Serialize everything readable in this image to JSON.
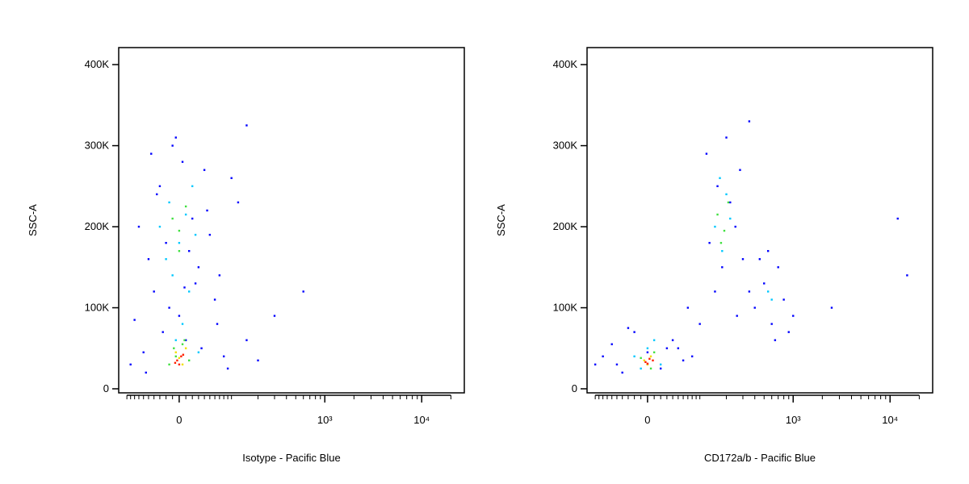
{
  "chart_data": [
    {
      "type": "scatter",
      "xlabel": "Isotype - Pacific Blue",
      "ylabel": "SSC-A",
      "xscale": "biex",
      "xlim": [
        -125,
        27500
      ],
      "ylim": [
        -5000,
        421000
      ],
      "xticks": [
        0,
        {
          "value": 1000,
          "label": "10³"
        },
        {
          "value": 10000,
          "label": "10⁴"
        }
      ],
      "xminorticks": [
        -100,
        -90,
        -80,
        -70,
        -60,
        -50,
        -40,
        -30,
        -20,
        -10,
        10,
        20,
        30,
        40,
        50,
        60,
        70,
        80,
        90,
        100,
        200,
        300,
        400,
        500,
        600,
        700,
        800,
        900,
        2000,
        3000,
        4000,
        5000,
        6000,
        7000,
        8000,
        9000,
        20000
      ],
      "yticks": [
        0,
        {
          "value": 100000,
          "label": "100K"
        },
        {
          "value": 200000,
          "label": "200K"
        },
        {
          "value": 300000,
          "label": "300K"
        },
        {
          "value": 400000,
          "label": "400K"
        }
      ],
      "series": [
        {
          "color": "#0000ff",
          "x": [
            -90,
            -60,
            -40,
            -30,
            -20,
            -10,
            0,
            10,
            20,
            30,
            40,
            60,
            80,
            120,
            -70,
            -50,
            -25,
            5,
            25,
            50,
            90,
            150,
            -35,
            -15,
            15,
            35,
            70,
            -80,
            -45,
            45,
            100,
            200,
            -55,
            65,
            -5,
            8,
            600,
            300,
            150
          ],
          "y": [
            30000,
            45000,
            120000,
            250000,
            180000,
            300000,
            90000,
            60000,
            210000,
            150000,
            270000,
            110000,
            40000,
            230000,
            200000,
            160000,
            70000,
            280000,
            130000,
            190000,
            25000,
            60000,
            240000,
            100000,
            170000,
            50000,
            140000,
            85000,
            290000,
            220000,
            260000,
            35000,
            20000,
            80000,
            310000,
            125000,
            120000,
            90000,
            325000
          ]
        },
        {
          "color": "#00c8ff",
          "x": [
            -30,
            -15,
            0,
            10,
            20,
            -20,
            5,
            15,
            -5,
            25,
            -10,
            30
          ],
          "y": [
            200000,
            230000,
            180000,
            215000,
            250000,
            160000,
            80000,
            120000,
            60000,
            190000,
            140000,
            45000
          ]
        },
        {
          "color": "#40e040",
          "x": [
            -10,
            0,
            10,
            -5,
            5,
            15,
            -15,
            0,
            8,
            -8
          ],
          "y": [
            210000,
            195000,
            225000,
            40000,
            55000,
            35000,
            30000,
            170000,
            60000,
            50000
          ]
        },
        {
          "color": "#f0e000",
          "x": [
            -5,
            5,
            0,
            10
          ],
          "y": [
            45000,
            30000,
            38000,
            50000
          ]
        },
        {
          "color": "#ff2000",
          "x": [
            -3,
            3,
            0,
            6,
            -6
          ],
          "y": [
            35000,
            40000,
            30000,
            42000,
            32000
          ]
        }
      ]
    },
    {
      "type": "scatter",
      "xlabel": "CD172a/b - Pacific Blue",
      "ylabel": "SSC-A",
      "xscale": "biex",
      "xlim": [
        -125,
        27500
      ],
      "ylim": [
        -5000,
        421000
      ],
      "xticks": [
        0,
        {
          "value": 1000,
          "label": "10³"
        },
        {
          "value": 10000,
          "label": "10⁴"
        }
      ],
      "xminorticks": [
        -100,
        -90,
        -80,
        -70,
        -60,
        -50,
        -40,
        -30,
        -20,
        -10,
        10,
        20,
        30,
        40,
        50,
        60,
        70,
        80,
        90,
        100,
        200,
        300,
        400,
        500,
        600,
        700,
        800,
        900,
        2000,
        3000,
        4000,
        5000,
        6000,
        7000,
        8000,
        9000,
        20000
      ],
      "yticks": [
        0,
        {
          "value": 100000,
          "label": "100K"
        },
        {
          "value": 200000,
          "label": "200K"
        },
        {
          "value": 300000,
          "label": "300K"
        },
        {
          "value": 400000,
          "label": "400K"
        }
      ],
      "series": [
        {
          "color": "#0000ff",
          "x": [
            -100,
            -60,
            -40,
            -20,
            0,
            20,
            40,
            60,
            100,
            -80,
            -30,
            30,
            80,
            130,
            160,
            200,
            250,
            300,
            120,
            180,
            220,
            280,
            150,
            260,
            400,
            500,
            600,
            700,
            800,
            900,
            450,
            650,
            550,
            350,
            -50,
            50,
            70,
            350,
            2500,
            12000,
            1000,
            15000
          ],
          "y": [
            30000,
            55000,
            20000,
            70000,
            45000,
            25000,
            60000,
            35000,
            80000,
            40000,
            75000,
            50000,
            40000,
            180000,
            250000,
            310000,
            200000,
            160000,
            290000,
            150000,
            230000,
            270000,
            120000,
            90000,
            100000,
            130000,
            80000,
            150000,
            110000,
            70000,
            160000,
            60000,
            170000,
            120000,
            30000,
            50000,
            100000,
            330000,
            100000,
            210000,
            90000,
            140000
          ]
        },
        {
          "color": "#00c8ff",
          "x": [
            150,
            200,
            180,
            220,
            170,
            -20,
            0,
            20,
            10,
            550,
            600,
            -10
          ],
          "y": [
            200000,
            240000,
            170000,
            210000,
            260000,
            40000,
            50000,
            30000,
            60000,
            120000,
            110000,
            25000
          ]
        },
        {
          "color": "#40e040",
          "x": [
            160,
            190,
            210,
            175,
            -10,
            0,
            10,
            5
          ],
          "y": [
            215000,
            195000,
            230000,
            180000,
            38000,
            30000,
            45000,
            25000
          ]
        },
        {
          "color": "#f0e000",
          "x": [
            -5,
            5,
            0
          ],
          "y": [
            35000,
            40000,
            30000
          ]
        },
        {
          "color": "#ff2000",
          "x": [
            -3,
            3,
            0,
            8
          ],
          "y": [
            33000,
            37000,
            31000,
            35000
          ]
        }
      ]
    }
  ]
}
